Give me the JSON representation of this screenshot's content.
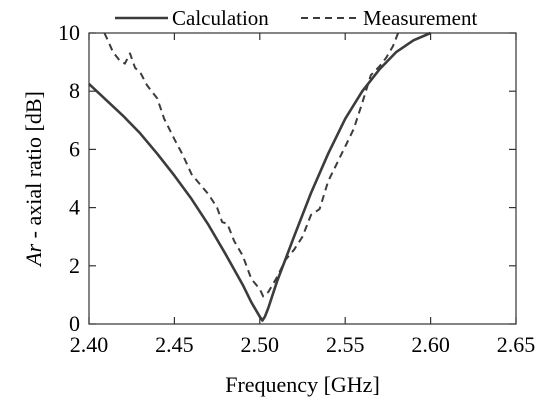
{
  "chart_data": {
    "type": "line",
    "xlabel": "Frequency [GHz]",
    "ylabel_italic": "Ar",
    "ylabel_rest": " - axial ratio [dB]",
    "xlim": [
      2.4,
      2.65
    ],
    "ylim": [
      0,
      10
    ],
    "x_ticks": [
      2.4,
      2.45,
      2.5,
      2.55,
      2.6,
      2.65
    ],
    "x_tick_labels": [
      "2.40",
      "2.45",
      "2.50",
      "2.55",
      "2.60",
      "2.65"
    ],
    "y_ticks": [
      0,
      2,
      4,
      6,
      8,
      10
    ],
    "y_tick_labels": [
      "0",
      "2",
      "4",
      "6",
      "8",
      "10"
    ],
    "grid": false,
    "legend_position": "top",
    "series": [
      {
        "name": "Calculation",
        "style": "solid",
        "color": "#3c3c3c",
        "x": [
          2.4,
          2.41,
          2.42,
          2.43,
          2.44,
          2.45,
          2.46,
          2.47,
          2.48,
          2.49,
          2.495,
          2.5,
          2.5015,
          2.503,
          2.505,
          2.51,
          2.52,
          2.53,
          2.54,
          2.55,
          2.56,
          2.57,
          2.58,
          2.59,
          2.6
        ],
        "values": [
          8.25,
          7.7,
          7.15,
          6.55,
          5.85,
          5.1,
          4.3,
          3.4,
          2.4,
          1.35,
          0.75,
          0.25,
          0.12,
          0.25,
          0.55,
          1.45,
          3.0,
          4.5,
          5.85,
          7.05,
          8.0,
          8.75,
          9.35,
          9.75,
          10.0
        ]
      },
      {
        "name": "Measurement",
        "style": "dashed",
        "color": "#3c3c3c",
        "x": [
          2.409,
          2.411,
          2.414,
          2.418,
          2.421,
          2.424,
          2.427,
          2.43,
          2.434,
          2.44,
          2.444,
          2.45,
          2.455,
          2.46,
          2.465,
          2.47,
          2.475,
          2.478,
          2.481,
          2.485,
          2.49,
          2.495,
          2.5,
          2.502,
          2.505,
          2.51,
          2.515,
          2.52,
          2.525,
          2.53,
          2.535,
          2.54,
          2.545,
          2.55,
          2.555,
          2.56,
          2.565,
          2.57,
          2.574,
          2.578,
          2.581
        ],
        "values": [
          10.0,
          9.75,
          9.35,
          9.05,
          8.95,
          9.3,
          8.8,
          8.65,
          8.2,
          7.75,
          7.05,
          6.35,
          5.8,
          5.15,
          4.8,
          4.45,
          4.0,
          3.5,
          3.45,
          2.85,
          2.35,
          1.55,
          1.2,
          0.95,
          1.1,
          1.6,
          2.2,
          2.55,
          3.0,
          3.75,
          3.95,
          4.9,
          5.5,
          6.1,
          6.7,
          7.6,
          8.55,
          8.85,
          9.15,
          9.55,
          10.0
        ]
      }
    ]
  }
}
